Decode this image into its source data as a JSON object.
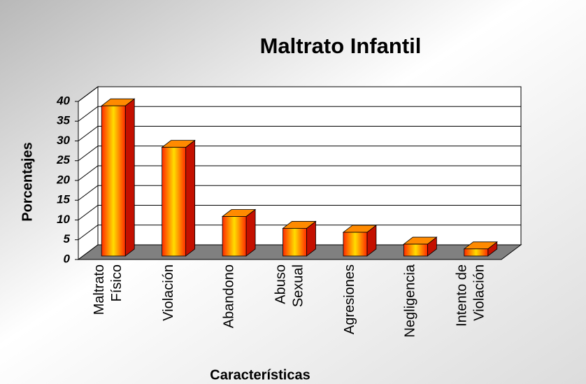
{
  "chart_data": {
    "type": "bar3d",
    "title": "Maltrato Infantil",
    "x_label": "Características",
    "y_label": "Porcentajes",
    "categories": [
      [
        "Maltrato",
        "Físico"
      ],
      [
        "Violación"
      ],
      [
        "Abandono"
      ],
      [
        "Abuso",
        "Sexual"
      ],
      [
        "Agresiones"
      ],
      [
        "Negligencia"
      ],
      [
        "Intento de",
        "Violación"
      ]
    ],
    "values": [
      38,
      27.5,
      10,
      7,
      6,
      3,
      1.8
    ],
    "ylim": [
      0,
      40
    ],
    "yticks": [
      0,
      5,
      10,
      15,
      20,
      25,
      30,
      35,
      40
    ],
    "grid": true,
    "colors": {
      "light": "#ffdd00",
      "dark": "#ff2a00",
      "side": "#c41000",
      "top": "#ff8a00",
      "floor": "#808080"
    }
  }
}
